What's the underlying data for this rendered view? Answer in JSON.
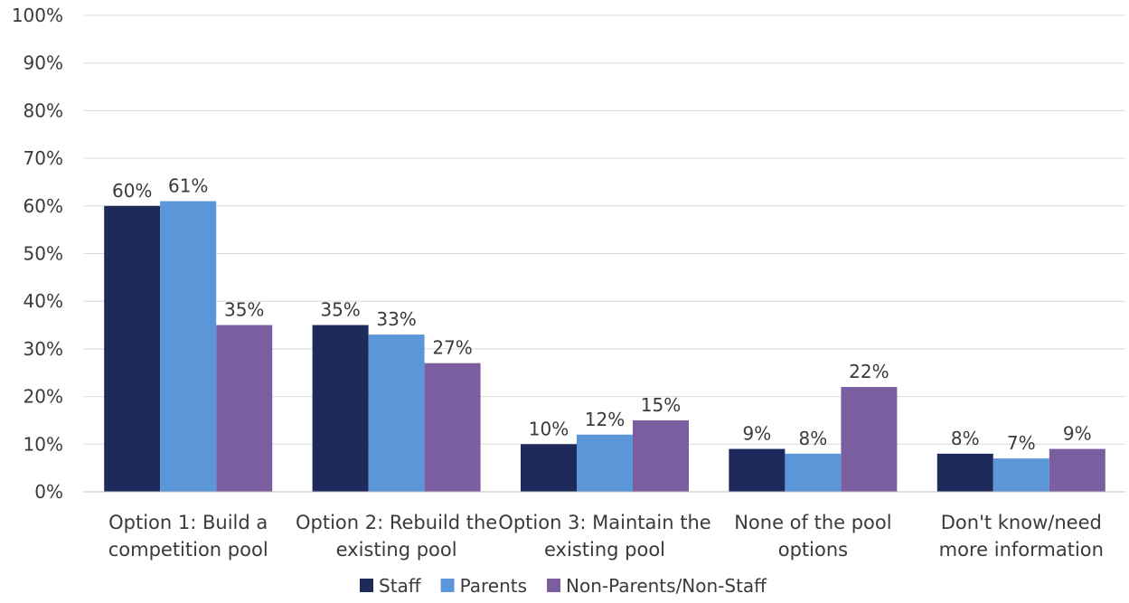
{
  "chart_data": {
    "type": "bar",
    "categories": [
      [
        "Option 1: Build a",
        "competition pool"
      ],
      [
        "Option 2: Rebuild the",
        "existing pool"
      ],
      [
        "Option 3: Maintain the",
        "existing pool"
      ],
      [
        "None of the pool",
        "options"
      ],
      [
        "Don't know/need",
        "more information"
      ]
    ],
    "series": [
      {
        "name": "Staff",
        "color": "#1f2a5c",
        "values": [
          60,
          35,
          10,
          9,
          8
        ],
        "labels": [
          "60%",
          "35%",
          "10%",
          "9%",
          "8%"
        ]
      },
      {
        "name": "Parents",
        "color": "#5b96d8",
        "values": [
          61,
          33,
          12,
          8,
          7
        ],
        "labels": [
          "61%",
          "33%",
          "12%",
          "8%",
          "7%"
        ]
      },
      {
        "name": "Non-Parents/Non-Staff",
        "color": "#7b5ea0",
        "values": [
          35,
          27,
          15,
          22,
          9
        ],
        "labels": [
          "35%",
          "27%",
          "15%",
          "22%",
          "9%"
        ]
      }
    ],
    "yticks": [
      "0%",
      "10%",
      "20%",
      "30%",
      "40%",
      "50%",
      "60%",
      "70%",
      "80%",
      "90%",
      "100%"
    ],
    "ylim": [
      0,
      100
    ],
    "grid": true,
    "legend": "bottom"
  }
}
